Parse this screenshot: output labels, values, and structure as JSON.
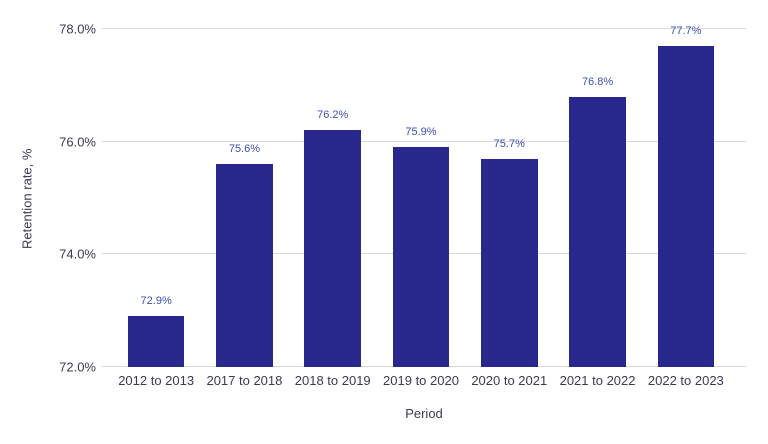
{
  "chart_data": {
    "type": "bar",
    "categories": [
      "2012 to 2013",
      "2017 to 2018",
      "2018 to 2019",
      "2019 to 2020",
      "2020 to 2021",
      "2021 to 2022",
      "2022 to 2023"
    ],
    "values": [
      72.9,
      75.6,
      76.2,
      75.9,
      75.7,
      76.8,
      77.7
    ],
    "value_labels": [
      "72.9%",
      "75.6%",
      "76.2%",
      "75.9%",
      "75.7%",
      "76.8%",
      "77.7%"
    ],
    "xlabel": "Period",
    "ylabel": "Retention rate, %",
    "ylim": [
      72,
      78
    ],
    "yticks": [
      72,
      74,
      76,
      78
    ],
    "ytick_labels": [
      "72.0%",
      "74.0%",
      "76.0%",
      "78.0%"
    ],
    "grid": true,
    "legend": "none",
    "colors": {
      "bar": "#28288c",
      "value_label": "#3f4eb5",
      "axis_text": "#3a3a55",
      "gridline": "#d9d9d9",
      "background": "#ffffff"
    }
  }
}
